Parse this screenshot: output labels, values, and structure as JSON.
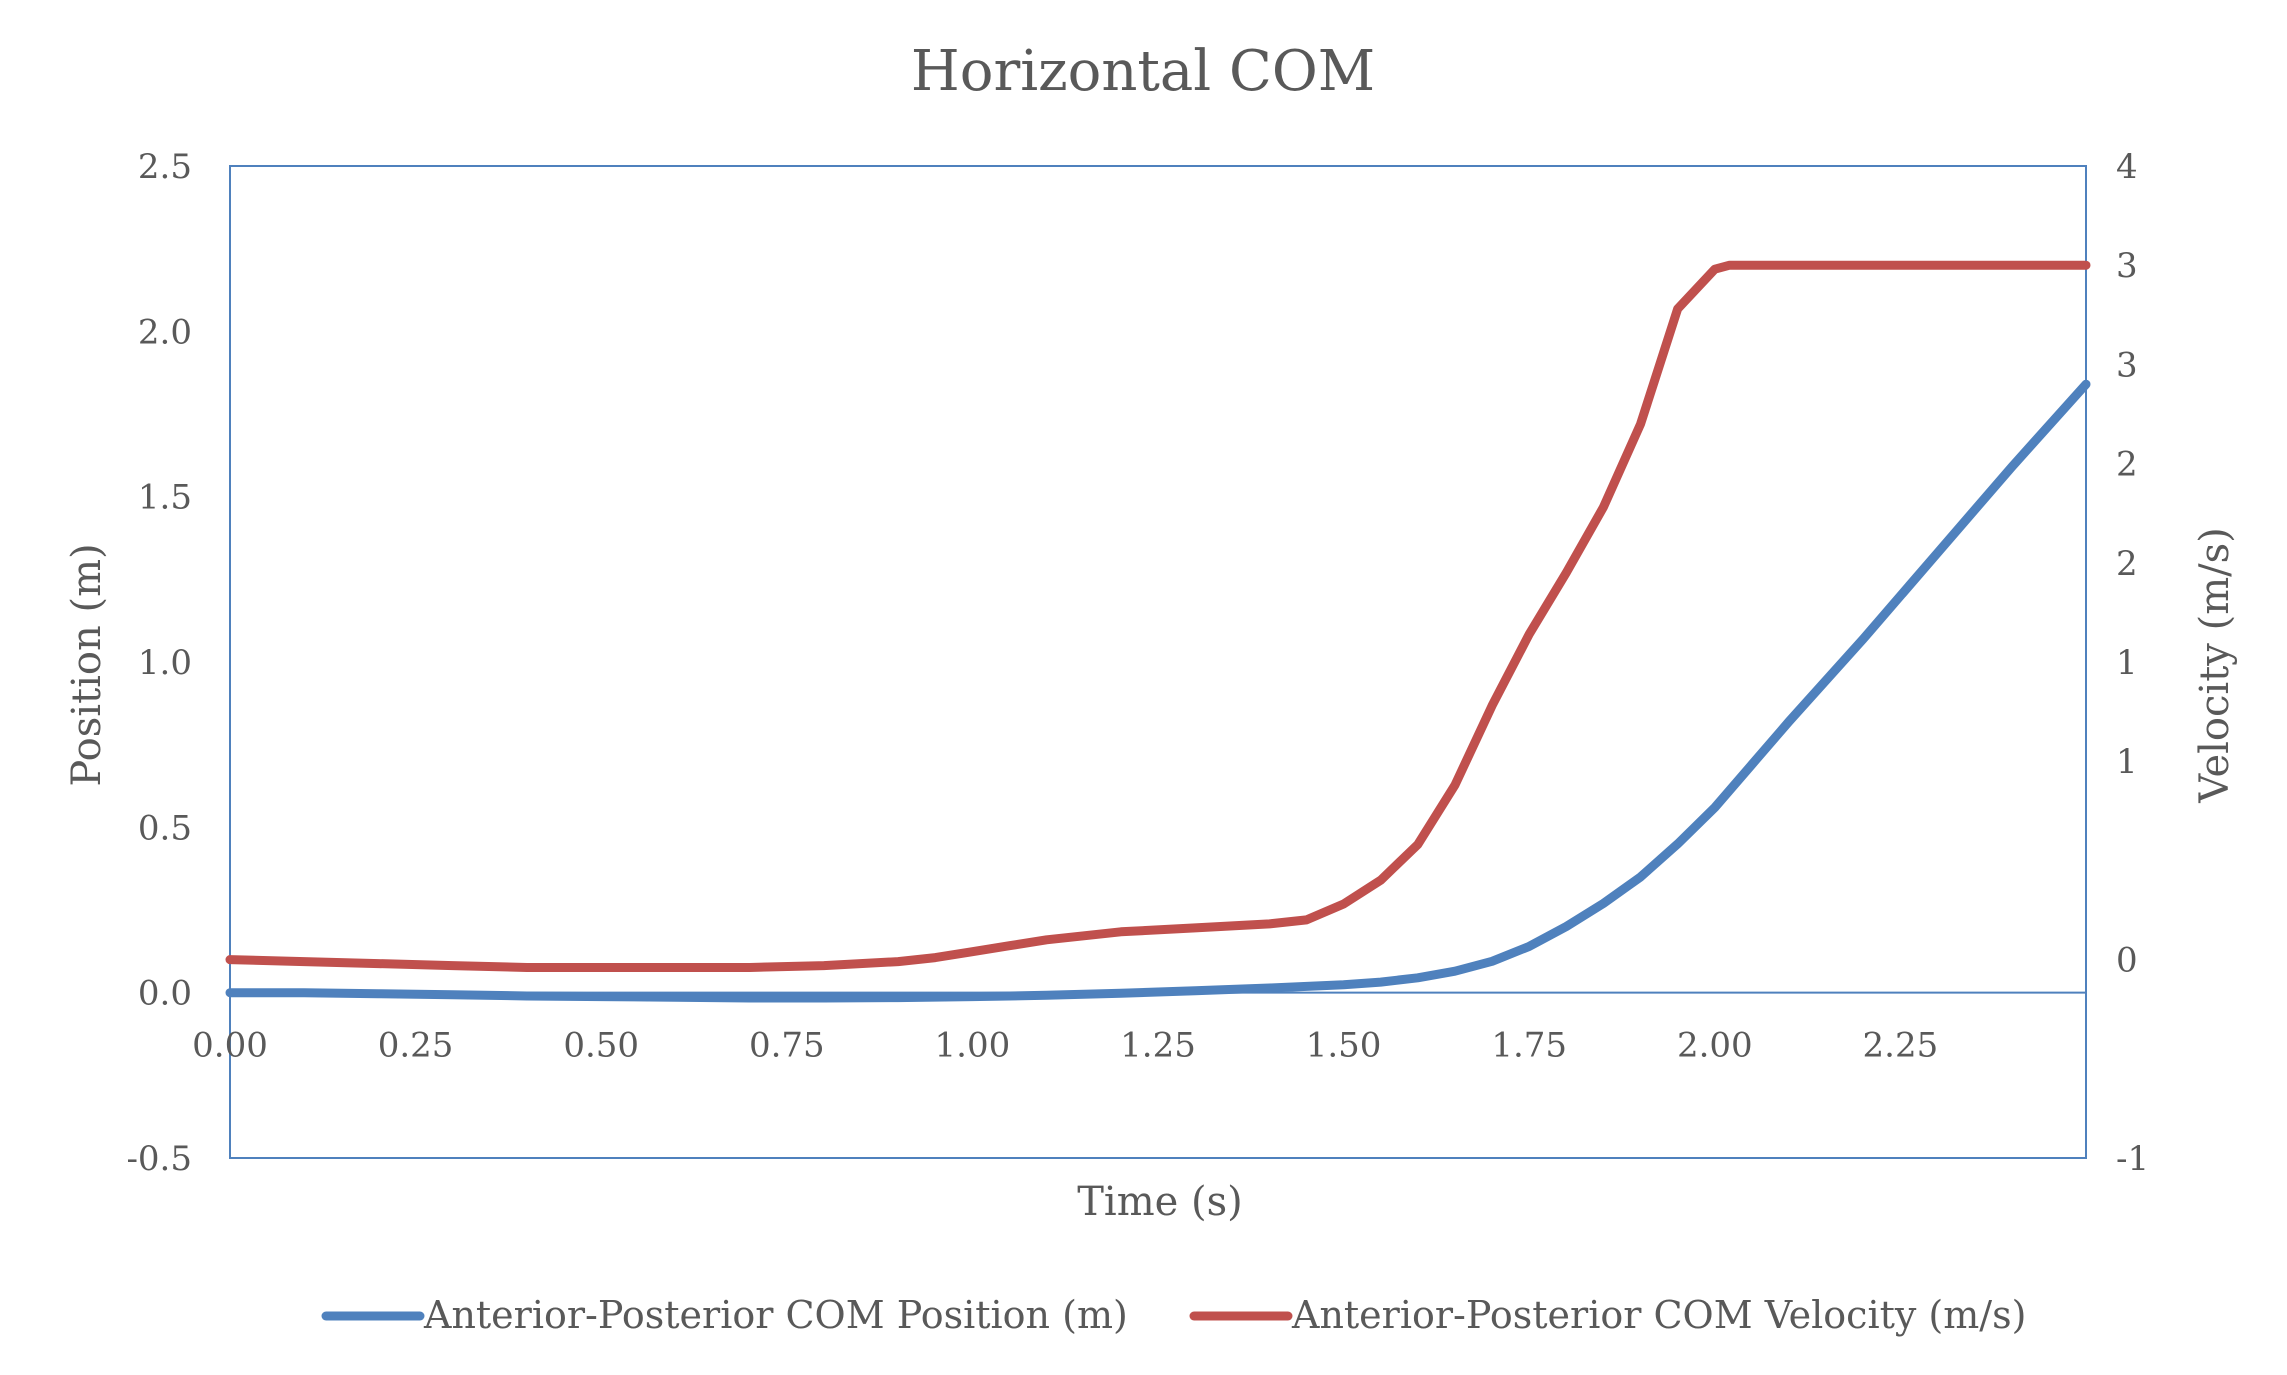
{
  "chart_data": {
    "type": "line",
    "title": "Horizontal COM",
    "xlabel": "Time (s)",
    "ylabel_left": "Position (m)",
    "ylabel_right": "Velocity (m/s)",
    "xlim": [
      0,
      2.5
    ],
    "ylim_left": [
      -0.5,
      2.5
    ],
    "ylim_right": [
      -1,
      4
    ],
    "x_ticks": [
      "0.00",
      "0.25",
      "0.50",
      "0.75",
      "1.00",
      "1.25",
      "1.50",
      "1.75",
      "2.00",
      "2.25"
    ],
    "x_tick_values": [
      0,
      0.25,
      0.5,
      0.75,
      1.0,
      1.25,
      1.5,
      1.75,
      2.0,
      2.25
    ],
    "y_left_ticks": [
      "2.5",
      "2.0",
      "1.5",
      "1.0",
      "0.5",
      "0.0",
      "-0.5"
    ],
    "y_left_tick_values": [
      2.5,
      2.0,
      1.5,
      1.0,
      0.5,
      0.0,
      -0.5
    ],
    "y_right_ticks": [
      "4",
      "3",
      "3",
      "2",
      "2",
      "1",
      "1",
      "0",
      "-1"
    ],
    "y_right_tick_values": [
      4,
      3.5,
      3,
      2.5,
      2,
      1.5,
      1,
      0,
      -1
    ],
    "grid": false,
    "legend_position": "bottom",
    "series": [
      {
        "name": "Anterior-Posterior COM Position (m)",
        "axis": "left",
        "color": "#4f81bd",
        "x": [
          0,
          0.1,
          0.2,
          0.3,
          0.4,
          0.5,
          0.6,
          0.7,
          0.8,
          0.9,
          1.0,
          1.1,
          1.2,
          1.3,
          1.4,
          1.5,
          1.55,
          1.6,
          1.65,
          1.7,
          1.75,
          1.8,
          1.85,
          1.9,
          1.95,
          2.0,
          2.05,
          2.1,
          2.2,
          2.3,
          2.4,
          2.5
        ],
        "values": [
          0.0,
          0.0,
          -0.003,
          -0.006,
          -0.01,
          -0.012,
          -0.014,
          -0.016,
          -0.016,
          -0.015,
          -0.012,
          -0.008,
          -0.002,
          0.006,
          0.014,
          0.024,
          0.032,
          0.045,
          0.065,
          0.095,
          0.14,
          0.2,
          0.27,
          0.35,
          0.45,
          0.56,
          0.69,
          0.82,
          1.07,
          1.33,
          1.59,
          1.84
        ]
      },
      {
        "name": "Anterior-Posterior COM Velocity (m/s)",
        "axis": "right",
        "color": "#c0504d",
        "x": [
          0,
          0.1,
          0.2,
          0.3,
          0.4,
          0.5,
          0.6,
          0.7,
          0.8,
          0.9,
          0.95,
          1.0,
          1.05,
          1.1,
          1.15,
          1.2,
          1.3,
          1.4,
          1.45,
          1.5,
          1.55,
          1.6,
          1.65,
          1.7,
          1.75,
          1.8,
          1.85,
          1.9,
          1.95,
          2.0,
          2.02,
          2.05,
          2.1,
          2.2,
          2.3,
          2.4,
          2.5
        ],
        "values": [
          0.0,
          -0.01,
          -0.02,
          -0.03,
          -0.04,
          -0.04,
          -0.04,
          -0.04,
          -0.03,
          -0.01,
          0.01,
          0.04,
          0.07,
          0.1,
          0.12,
          0.14,
          0.16,
          0.18,
          0.2,
          0.28,
          0.4,
          0.58,
          0.88,
          1.28,
          1.64,
          1.95,
          2.28,
          2.7,
          3.28,
          3.48,
          3.5,
          3.5,
          3.5,
          3.5,
          3.5,
          3.5,
          3.5
        ]
      }
    ]
  }
}
